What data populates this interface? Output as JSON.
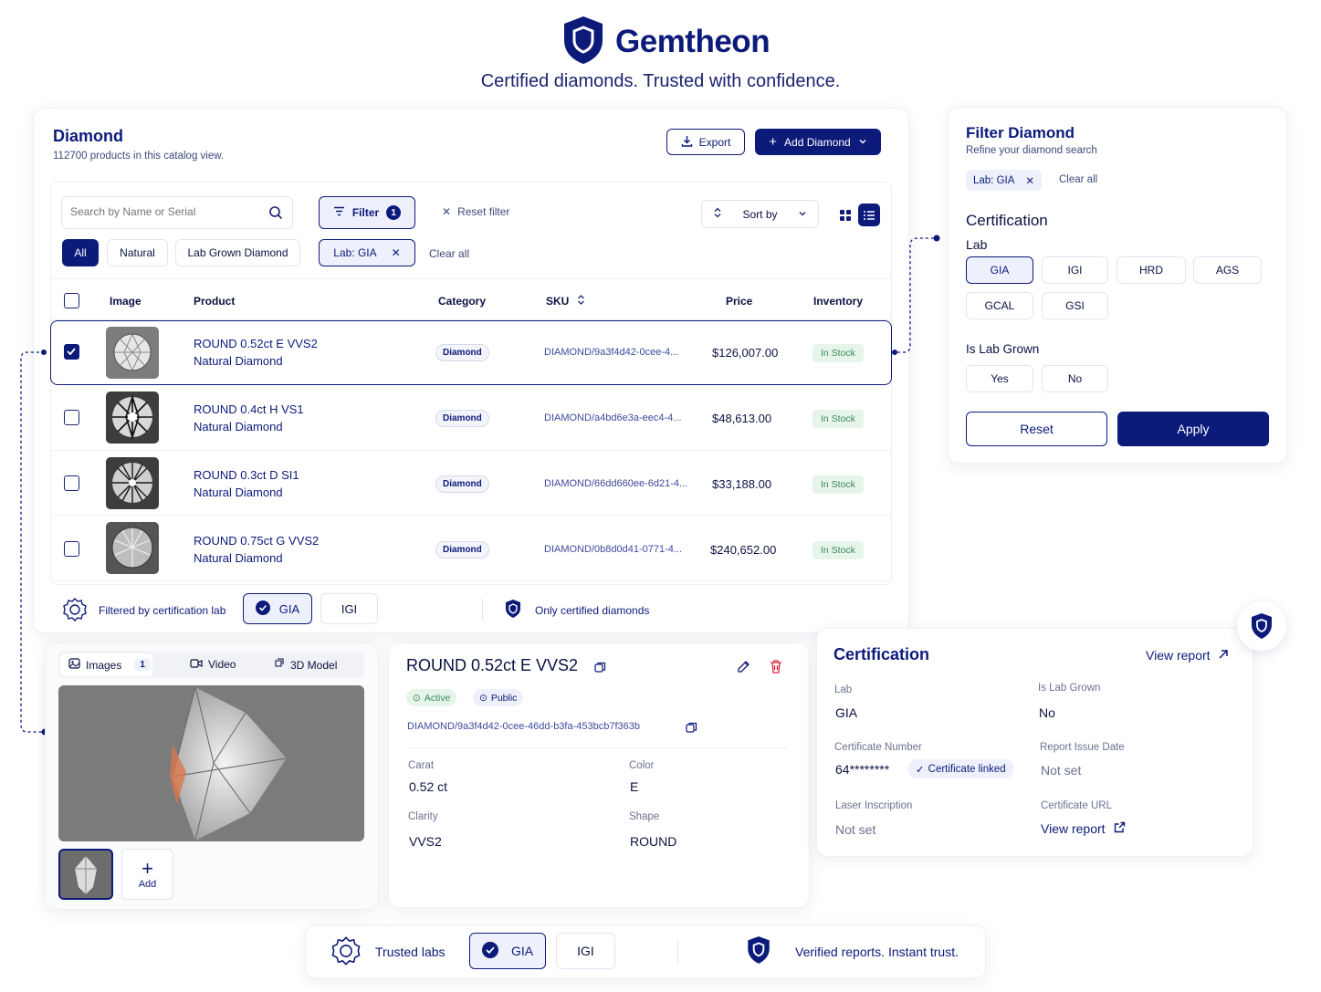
{
  "brand": {
    "name": "Gemtheon",
    "tagline": "Certified diamonds. Trusted with confidence.",
    "accent": "#0c1a7a"
  },
  "catalog": {
    "title": "Diamond",
    "subtitle": "112700 products in this catalog view.",
    "export_label": "Export",
    "add_label": "Add Diamond",
    "search_placeholder": "Search by Name or Serial",
    "filter_label": "Filter",
    "filter_count": "1",
    "reset_filter_label": "Reset filter",
    "sort_label": "Sort by",
    "type_tabs": [
      "All",
      "Natural",
      "Lab Grown Diamond"
    ],
    "active_chip": "Lab: GIA",
    "clear_all": "Clear all",
    "columns": [
      "Image",
      "Product",
      "Category",
      "SKU",
      "Price",
      "Inventory"
    ],
    "rows": [
      {
        "name": "ROUND 0.52ct E VVS2",
        "type": "Natural Diamond",
        "category": "Diamond",
        "sku": "DIAMOND/9a3f4d42-0cee-4...",
        "price": "$126,007.00",
        "stock": "In Stock",
        "checked": true
      },
      {
        "name": "ROUND 0.4ct H VS1",
        "type": "Natural Diamond",
        "category": "Diamond",
        "sku": "DIAMOND/a4bd6e3a-eec4-4...",
        "price": "$48,613.00",
        "stock": "In Stock",
        "checked": false
      },
      {
        "name": "ROUND 0.3ct D SI1",
        "type": "Natural Diamond",
        "category": "Diamond",
        "sku": "DIAMOND/66dd660ee-6d21-4...",
        "price": "$33,188.00",
        "stock": "In Stock",
        "checked": false
      },
      {
        "name": "ROUND 0.75ct G VVS2",
        "type": "Natural Diamond",
        "category": "Diamond",
        "sku": "DIAMOND/0b8d0d41-0771-4...",
        "price": "$240,652.00",
        "stock": "In Stock",
        "checked": false
      }
    ],
    "footer": {
      "filtered_label": "Filtered by certification lab",
      "lab1": "GIA",
      "lab2": "IGI",
      "certified_label": "Only certified diamonds"
    }
  },
  "filter_panel": {
    "title": "Filter Diamond",
    "subtitle": "Refine your diamond search",
    "chip": "Lab: GIA",
    "clear_all": "Clear all",
    "section": "Certification",
    "lab_label": "Lab",
    "labs": [
      "GIA",
      "IGI",
      "HRD",
      "AGS",
      "GCAL",
      "GSI"
    ],
    "lab_grown_label": "Is Lab Grown",
    "yes": "Yes",
    "no": "No",
    "reset": "Reset",
    "apply": "Apply"
  },
  "media": {
    "tabs": {
      "images": "Images",
      "images_count": "1",
      "video": "Video",
      "model": "3D Model"
    },
    "add_label": "Add"
  },
  "detail": {
    "title": "ROUND 0.52ct E VVS2",
    "status": "Active",
    "visibility": "Public",
    "sku": "DIAMOND/9a3f4d42-0cee-46dd-b3fa-453bcb7f363b",
    "carat_label": "Carat",
    "carat": "0.52 ct",
    "color_label": "Color",
    "color": "E",
    "clarity_label": "Clarity",
    "clarity": "VVS2",
    "shape_label": "Shape",
    "shape": "ROUND"
  },
  "certification": {
    "title": "Certification",
    "view_report": "View report",
    "lab_label": "Lab",
    "lab": "GIA",
    "grown_label": "Is Lab Grown",
    "grown": "No",
    "cert_num_label": "Certificate Number",
    "cert_num": "64********",
    "linked": "Certificate linked",
    "issue_label": "Report Issue Date",
    "issue": "Not set",
    "laser_label": "Laser Inscription",
    "laser": "Not set",
    "url_label": "Certificate URL",
    "url": "View report"
  },
  "bottom_bar": {
    "trusted": "Trusted labs",
    "lab1": "GIA",
    "lab2": "IGI",
    "verified": "Verified reports. Instant trust."
  }
}
